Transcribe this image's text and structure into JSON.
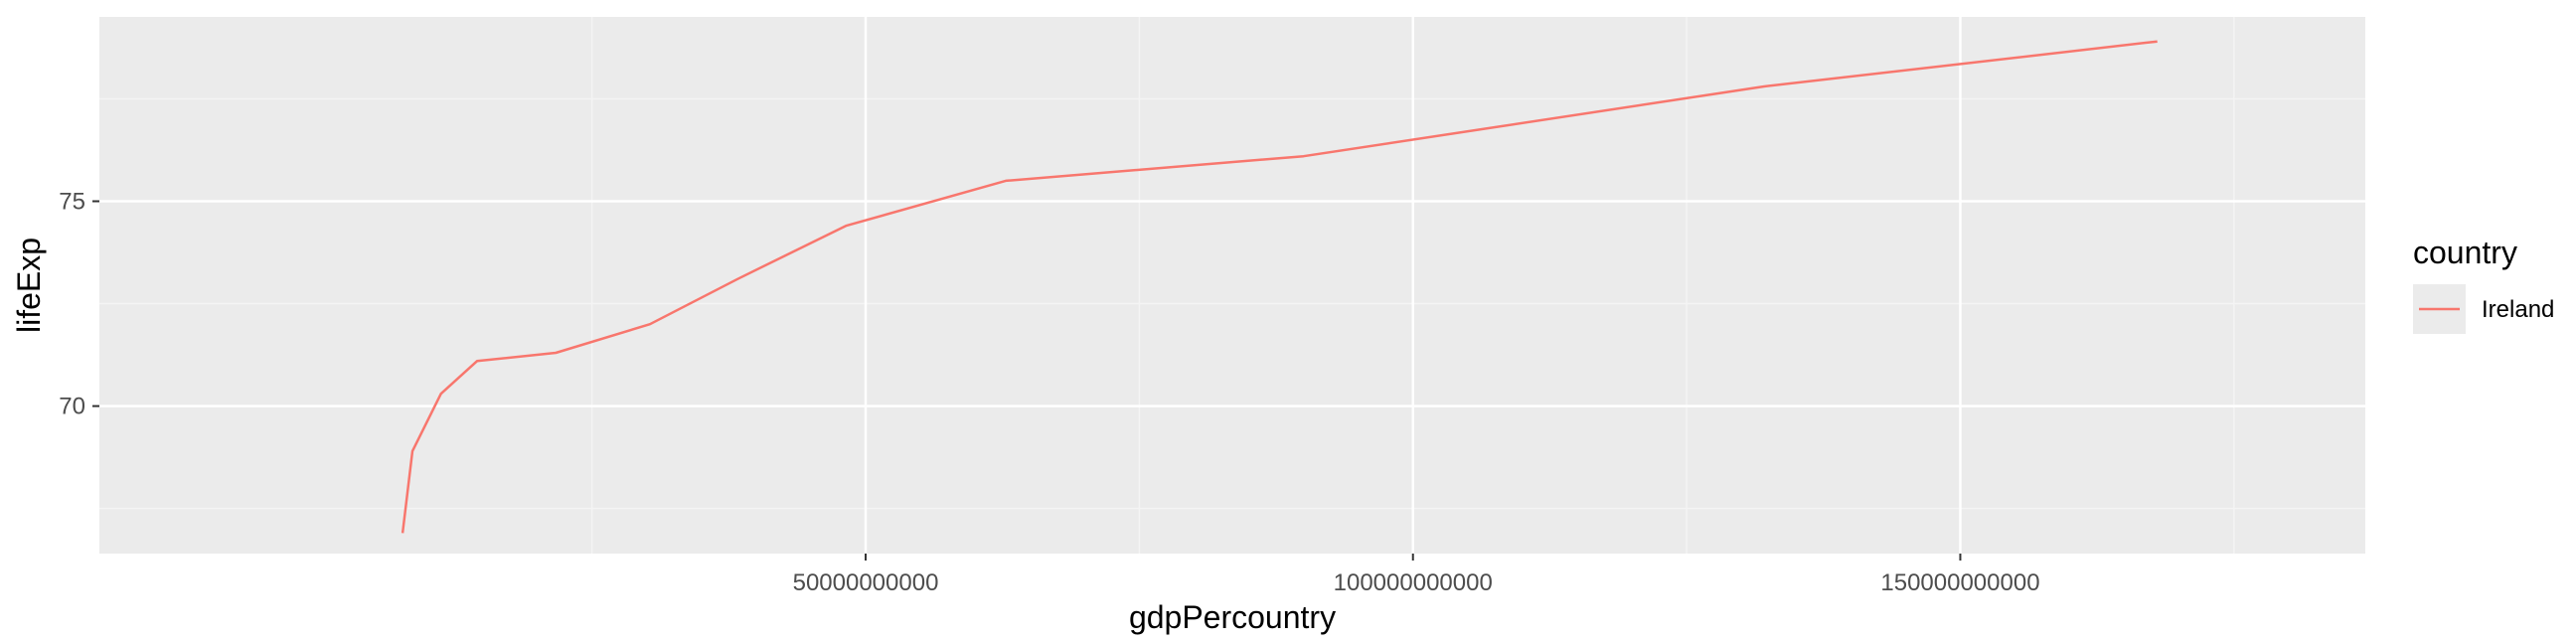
{
  "chart_data": {
    "type": "line",
    "title": "",
    "xlabel": "gdpPercountry",
    "ylabel": "lifeExp",
    "xlim": [
      -20000000000,
      187000000000
    ],
    "ylim": [
      66.4,
      79.5
    ],
    "x_ticks": [
      50000000000,
      100000000000,
      150000000000
    ],
    "x_tick_labels": [
      "50000000000",
      "100000000000",
      "150000000000"
    ],
    "y_ticks": [
      70,
      75
    ],
    "y_tick_labels": [
      "70",
      "75"
    ],
    "grid": true,
    "legend": {
      "title": "country",
      "position": "right"
    },
    "series": [
      {
        "name": "Ireland",
        "color": "#F8766D",
        "x": [
          7700000000,
          8600000000,
          11200000000,
          14500000000,
          21700000000,
          30300000000,
          38300000000,
          48200000000,
          62800000000,
          90000000000,
          132000000000,
          168000000000
        ],
        "y": [
          66.9,
          68.9,
          70.3,
          71.1,
          71.3,
          72.0,
          73.1,
          74.4,
          75.5,
          76.1,
          77.8,
          78.9
        ]
      }
    ],
    "colors": {
      "panel_background": "#EBEBEB",
      "grid_major": "#FFFFFF",
      "grid_minor": "#F4F4F4"
    }
  }
}
